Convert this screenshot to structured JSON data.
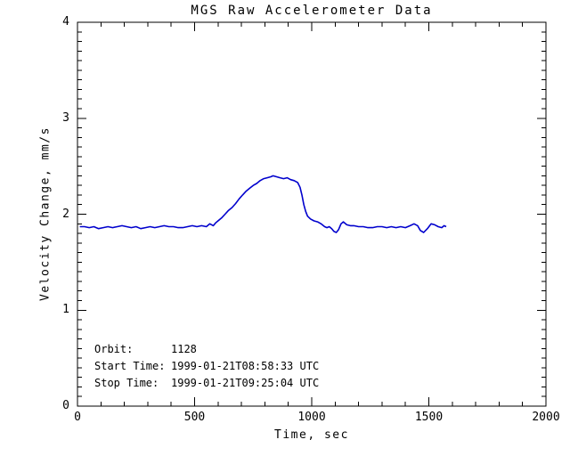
{
  "chart_data": {
    "type": "line",
    "title": "MGS Raw Accelerometer Data",
    "xlabel": "Time, sec",
    "ylabel": "Velocity Change, mm/s",
    "xlim": [
      0,
      2000
    ],
    "ylim": [
      0,
      4
    ],
    "x_tick_values": [
      0,
      500,
      1000,
      1500,
      2000
    ],
    "x_tick_labels": [
      "0",
      "500",
      "1000",
      "1500",
      "2000"
    ],
    "x_minor_interval": 100,
    "y_tick_values": [
      0,
      1,
      2,
      3,
      4
    ],
    "y_tick_labels": [
      "0",
      "1",
      "2",
      "3",
      "4"
    ],
    "y_minor_interval": 0.1,
    "grid": false,
    "legend": "none",
    "line_color": "#0000cd",
    "axis_color": "#000000",
    "series": [
      {
        "name": "Velocity Change",
        "x": [
          10,
          30,
          50,
          70,
          90,
          110,
          130,
          150,
          170,
          190,
          210,
          230,
          250,
          270,
          290,
          310,
          330,
          350,
          370,
          390,
          410,
          430,
          450,
          470,
          490,
          510,
          530,
          550,
          565,
          580,
          590,
          600,
          615,
          630,
          645,
          660,
          675,
          690,
          705,
          720,
          735,
          750,
          765,
          780,
          795,
          810,
          825,
          835,
          850,
          865,
          880,
          895,
          910,
          925,
          940,
          950,
          958,
          966,
          974,
          982,
          995,
          1010,
          1025,
          1040,
          1055,
          1065,
          1075,
          1085,
          1095,
          1105,
          1115,
          1125,
          1135,
          1150,
          1165,
          1180,
          1200,
          1220,
          1240,
          1260,
          1280,
          1300,
          1320,
          1340,
          1360,
          1380,
          1400,
          1420,
          1437,
          1452,
          1464,
          1478,
          1494,
          1510,
          1525,
          1540,
          1555,
          1565,
          1574
        ],
        "y": [
          1.87,
          1.87,
          1.86,
          1.87,
          1.85,
          1.86,
          1.87,
          1.86,
          1.87,
          1.88,
          1.87,
          1.86,
          1.87,
          1.85,
          1.86,
          1.87,
          1.86,
          1.87,
          1.88,
          1.87,
          1.87,
          1.86,
          1.86,
          1.87,
          1.88,
          1.87,
          1.88,
          1.87,
          1.9,
          1.88,
          1.91,
          1.93,
          1.96,
          2.0,
          2.04,
          2.07,
          2.11,
          2.16,
          2.2,
          2.24,
          2.27,
          2.3,
          2.32,
          2.35,
          2.37,
          2.38,
          2.39,
          2.4,
          2.39,
          2.38,
          2.37,
          2.38,
          2.36,
          2.35,
          2.33,
          2.28,
          2.2,
          2.1,
          2.03,
          1.98,
          1.95,
          1.93,
          1.92,
          1.9,
          1.87,
          1.86,
          1.87,
          1.85,
          1.82,
          1.81,
          1.84,
          1.9,
          1.92,
          1.89,
          1.88,
          1.88,
          1.87,
          1.87,
          1.86,
          1.86,
          1.87,
          1.87,
          1.86,
          1.87,
          1.86,
          1.87,
          1.86,
          1.88,
          1.9,
          1.88,
          1.83,
          1.81,
          1.85,
          1.9,
          1.89,
          1.87,
          1.86,
          1.88,
          1.87
        ]
      }
    ],
    "annotations": [
      {
        "label": "Orbit:",
        "value": "1128"
      },
      {
        "label": "Start Time:",
        "value": "1999-01-21T08:58:33 UTC"
      },
      {
        "label": "Stop Time:",
        "value": "1999-01-21T09:25:04 UTC"
      }
    ]
  }
}
